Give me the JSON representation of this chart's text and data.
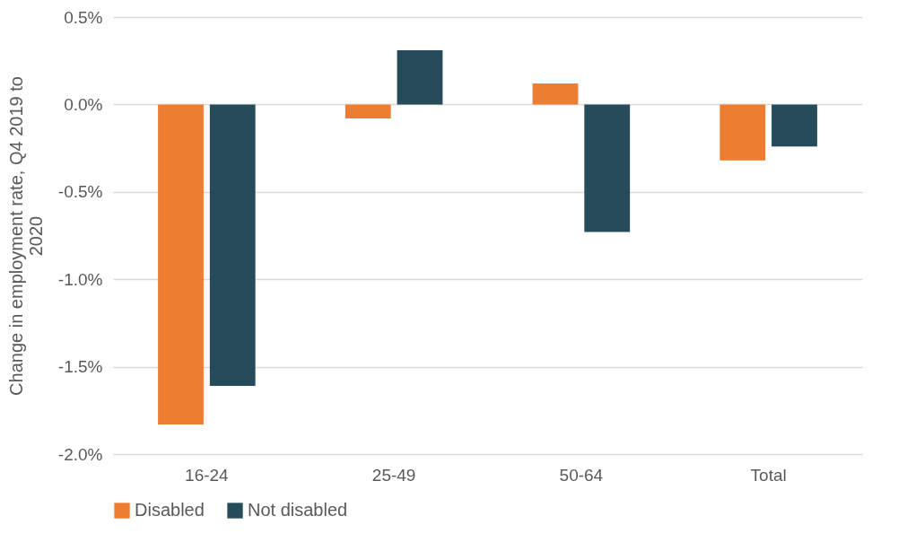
{
  "chart_data": {
    "type": "bar",
    "ylabel": "Change in employment rate, Q4 2019 to 2020",
    "categories": [
      "16-24",
      "25-49",
      "50-64",
      "Total"
    ],
    "series": [
      {
        "name": "Disabled",
        "color": "#ed7d31",
        "values": [
          -1.83,
          -0.08,
          0.12,
          -0.32
        ]
      },
      {
        "name": "Not disabled",
        "color": "#264b5a",
        "values": [
          -1.61,
          0.31,
          -0.73,
          -0.24
        ]
      }
    ],
    "ylim": [
      -2.0,
      0.5
    ],
    "yticks": [
      {
        "value": -2.0,
        "label": "-2.0%"
      },
      {
        "value": -1.5,
        "label": "-1.5%"
      },
      {
        "value": -1.0,
        "label": "-1.0%"
      },
      {
        "value": -0.5,
        "label": "-0.5%"
      },
      {
        "value": 0.0,
        "label": "0.0%"
      },
      {
        "value": 0.5,
        "label": "0.5%"
      }
    ],
    "grid": "y",
    "legend": "bottom"
  }
}
